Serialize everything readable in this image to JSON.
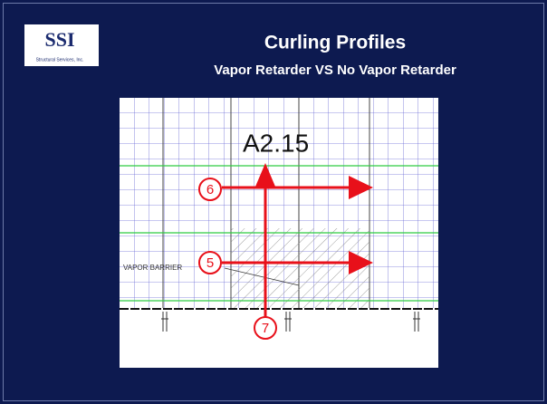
{
  "logo": {
    "text": "SSI",
    "caption": "Structural Services, Inc."
  },
  "header": {
    "title": "Curling Profiles",
    "subtitle": "Vapor Retarder VS No Vapor Retarder"
  },
  "drawing": {
    "sheet": "A2.15",
    "markers": [
      "6",
      "5",
      "7"
    ],
    "note": "VAPOR BARRIER"
  }
}
